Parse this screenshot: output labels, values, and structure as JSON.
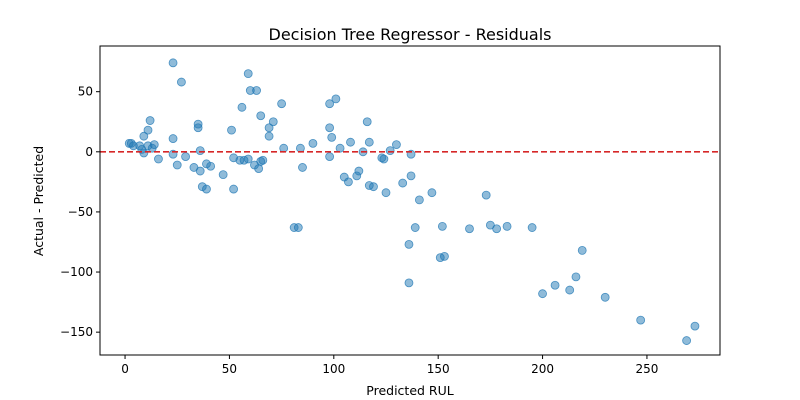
{
  "chart_data": {
    "type": "scatter",
    "title": "Decision Tree Regressor - Residuals",
    "xlabel": "Predicted RUL",
    "ylabel": "Actual - Predicted",
    "xlim": [
      -12,
      285
    ],
    "ylim": [
      -169,
      88
    ],
    "xticks": [
      0,
      50,
      100,
      150,
      200,
      250
    ],
    "yticks": [
      -150,
      -100,
      -50,
      0,
      50
    ],
    "grid": false,
    "reference_line": {
      "y": 0,
      "style": "dashed",
      "color": "#d62728"
    },
    "point_color": "#1f77b4",
    "point_alpha": 0.5,
    "points": [
      [
        2,
        7
      ],
      [
        3,
        7
      ],
      [
        4,
        5
      ],
      [
        7,
        5
      ],
      [
        8,
        2
      ],
      [
        9,
        -1
      ],
      [
        9,
        13
      ],
      [
        11,
        18
      ],
      [
        11,
        5
      ],
      [
        12,
        26
      ],
      [
        13,
        3
      ],
      [
        14,
        6
      ],
      [
        16,
        -6
      ],
      [
        23,
        74
      ],
      [
        23,
        11
      ],
      [
        23,
        -2
      ],
      [
        25,
        -11
      ],
      [
        27,
        58
      ],
      [
        29,
        -4
      ],
      [
        33,
        -13
      ],
      [
        35,
        23
      ],
      [
        35,
        20
      ],
      [
        36,
        -16
      ],
      [
        36,
        1
      ],
      [
        37,
        -29
      ],
      [
        39,
        -10
      ],
      [
        39,
        -31
      ],
      [
        41,
        -12
      ],
      [
        47,
        -19
      ],
      [
        51,
        18
      ],
      [
        52,
        -5
      ],
      [
        52,
        -31
      ],
      [
        55,
        -7
      ],
      [
        56,
        37
      ],
      [
        57,
        -7
      ],
      [
        59,
        65
      ],
      [
        59,
        -6
      ],
      [
        60,
        51
      ],
      [
        62,
        -11
      ],
      [
        63,
        51
      ],
      [
        64,
        -14
      ],
      [
        65,
        30
      ],
      [
        65,
        -8
      ],
      [
        66,
        -7
      ],
      [
        69,
        20
      ],
      [
        69,
        13
      ],
      [
        71,
        25
      ],
      [
        75,
        40
      ],
      [
        76,
        3
      ],
      [
        81,
        -63
      ],
      [
        83,
        -63
      ],
      [
        84,
        3
      ],
      [
        85,
        -13
      ],
      [
        90,
        7
      ],
      [
        98,
        40
      ],
      [
        98,
        20
      ],
      [
        98,
        -4
      ],
      [
        99,
        12
      ],
      [
        101,
        44
      ],
      [
        103,
        3
      ],
      [
        105,
        -21
      ],
      [
        107,
        -25
      ],
      [
        108,
        8
      ],
      [
        111,
        -20
      ],
      [
        112,
        -16
      ],
      [
        114,
        0
      ],
      [
        116,
        25
      ],
      [
        117,
        -28
      ],
      [
        117,
        8
      ],
      [
        119,
        -29
      ],
      [
        123,
        -5
      ],
      [
        124,
        -6
      ],
      [
        125,
        -34
      ],
      [
        127,
        1
      ],
      [
        130,
        6
      ],
      [
        133,
        -26
      ],
      [
        136,
        -77
      ],
      [
        136,
        -109
      ],
      [
        137,
        -20
      ],
      [
        137,
        -2
      ],
      [
        139,
        -63
      ],
      [
        141,
        -40
      ],
      [
        147,
        -34
      ],
      [
        151,
        -88
      ],
      [
        152,
        -62
      ],
      [
        153,
        -87
      ],
      [
        165,
        -64
      ],
      [
        173,
        -36
      ],
      [
        175,
        -61
      ],
      [
        178,
        -64
      ],
      [
        183,
        -62
      ],
      [
        195,
        -63
      ],
      [
        200,
        -118
      ],
      [
        206,
        -111
      ],
      [
        213,
        -115
      ],
      [
        216,
        -104
      ],
      [
        219,
        -82
      ],
      [
        230,
        -121
      ],
      [
        247,
        -140
      ],
      [
        269,
        -157
      ],
      [
        273,
        -145
      ]
    ]
  }
}
